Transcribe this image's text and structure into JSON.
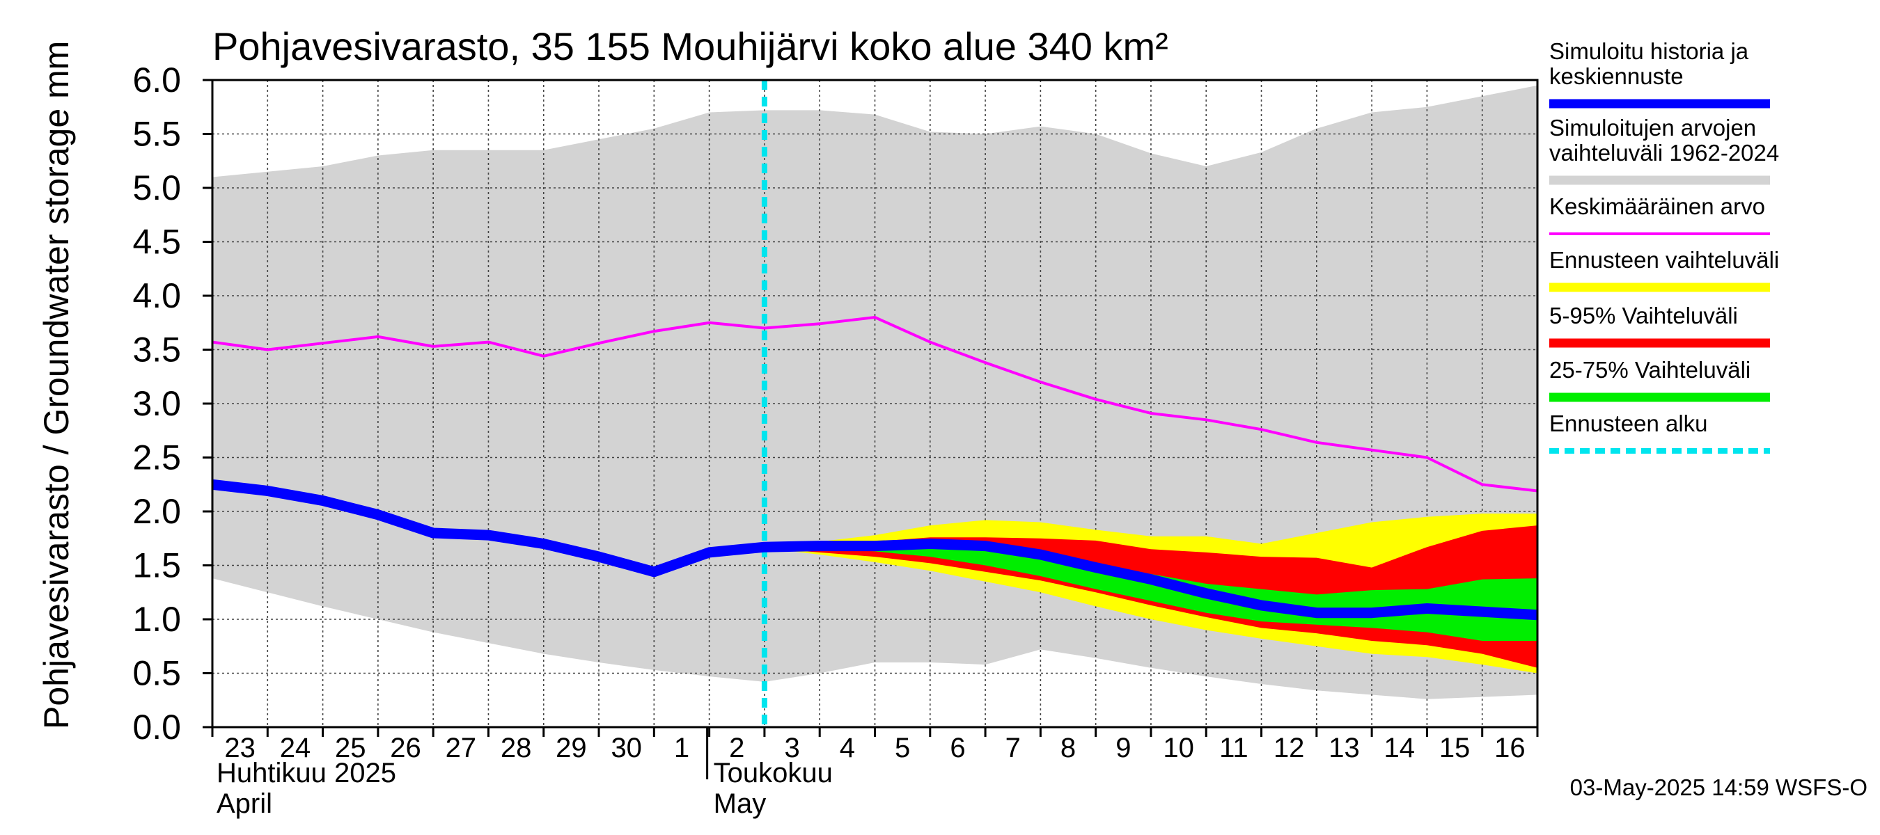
{
  "chart_data": {
    "type": "area",
    "title": "Pohjavesivarasto, 35 155 Mouhijärvi koko alue 340 km²",
    "ylabel": "Pohjavesivarasto / Groundwater storage   mm",
    "ylim": [
      0.0,
      6.0
    ],
    "yticks": [
      "0.0",
      "0.5",
      "1.0",
      "1.5",
      "2.0",
      "2.5",
      "3.0",
      "3.5",
      "4.0",
      "4.5",
      "5.0",
      "5.5",
      "6.0"
    ],
    "xlim": [
      0,
      24
    ],
    "x_tick_labels": [
      "23",
      "24",
      "25",
      "26",
      "27",
      "28",
      "29",
      "30",
      "1",
      "2",
      "3",
      "4",
      "5",
      "6",
      "7",
      "8",
      "9",
      "10",
      "11",
      "12",
      "13",
      "14",
      "15",
      "16"
    ],
    "month_labels": [
      {
        "line1": "Huhtikuu  2025",
        "line2": "April",
        "x": 0
      },
      {
        "line1": "Toukokuu",
        "line2": "May",
        "x": 9
      }
    ],
    "forecast_start_x": 10,
    "series": [
      {
        "name": "Simuloitujen arvojen vaihteluväli 1962-2024",
        "kind": "band",
        "color": "#d3d3d3",
        "x": [
          0,
          1,
          2,
          3,
          4,
          5,
          6,
          7,
          8,
          9,
          10,
          11,
          12,
          13,
          14,
          15,
          16,
          17,
          18,
          19,
          20,
          21,
          22,
          23,
          24
        ],
        "upper": [
          5.1,
          5.15,
          5.2,
          5.3,
          5.35,
          5.35,
          5.35,
          5.45,
          5.55,
          5.7,
          5.72,
          5.72,
          5.68,
          5.52,
          5.5,
          5.57,
          5.5,
          5.32,
          5.2,
          5.33,
          5.55,
          5.7,
          5.75,
          5.85,
          5.95
        ],
        "lower": [
          1.38,
          1.25,
          1.12,
          1.0,
          0.88,
          0.78,
          0.68,
          0.6,
          0.53,
          0.47,
          0.42,
          0.5,
          0.6,
          0.6,
          0.58,
          0.72,
          0.64,
          0.55,
          0.47,
          0.4,
          0.34,
          0.3,
          0.26,
          0.28,
          0.3
        ]
      },
      {
        "name": "Ennusteen vaihteluväli",
        "kind": "band",
        "color": "#ffff00",
        "x": [
          10,
          11,
          12,
          13,
          14,
          15,
          16,
          17,
          18,
          19,
          20,
          21,
          22,
          23,
          24
        ],
        "upper": [
          1.68,
          1.72,
          1.78,
          1.87,
          1.92,
          1.9,
          1.83,
          1.77,
          1.77,
          1.7,
          1.8,
          1.9,
          1.95,
          1.98,
          1.98
        ],
        "lower": [
          1.66,
          1.6,
          1.53,
          1.45,
          1.35,
          1.25,
          1.12,
          1.0,
          0.9,
          0.82,
          0.75,
          0.68,
          0.65,
          0.58,
          0.5
        ]
      },
      {
        "name": "5-95% Vaihteluväli",
        "kind": "band",
        "color": "#ff0000",
        "x": [
          10,
          11,
          12,
          13,
          14,
          15,
          16,
          17,
          18,
          19,
          20,
          21,
          22,
          23,
          24
        ],
        "upper": [
          1.68,
          1.7,
          1.72,
          1.76,
          1.76,
          1.75,
          1.73,
          1.65,
          1.62,
          1.58,
          1.57,
          1.48,
          1.67,
          1.82,
          1.87
        ],
        "lower": [
          1.66,
          1.62,
          1.58,
          1.52,
          1.44,
          1.36,
          1.25,
          1.13,
          1.02,
          0.92,
          0.87,
          0.8,
          0.76,
          0.68,
          0.55
        ]
      },
      {
        "name": "25-75% Vaihteluväli",
        "kind": "band",
        "color": "#00ee00",
        "x": [
          10,
          11,
          12,
          13,
          14,
          15,
          16,
          17,
          18,
          19,
          20,
          21,
          22,
          23,
          24
        ],
        "upper": [
          1.67,
          1.69,
          1.7,
          1.71,
          1.66,
          1.58,
          1.49,
          1.42,
          1.33,
          1.28,
          1.23,
          1.27,
          1.28,
          1.37,
          1.38
        ],
        "lower": [
          1.67,
          1.66,
          1.63,
          1.58,
          1.5,
          1.4,
          1.28,
          1.17,
          1.06,
          0.98,
          0.95,
          0.92,
          0.88,
          0.8,
          0.8
        ]
      },
      {
        "name": "Keskimääräinen arvo",
        "kind": "line",
        "color": "#ff00ff",
        "x": [
          0,
          1,
          2,
          3,
          4,
          5,
          6,
          7,
          8,
          9,
          10,
          11,
          12,
          13,
          14,
          15,
          16,
          17,
          18,
          19,
          20,
          21,
          22,
          23,
          24
        ],
        "values": [
          3.57,
          3.5,
          3.56,
          3.62,
          3.53,
          3.57,
          3.44,
          3.56,
          3.67,
          3.75,
          3.7,
          3.74,
          3.8,
          3.57,
          3.38,
          3.2,
          3.04,
          2.91,
          2.85,
          2.76,
          2.64,
          2.57,
          2.5,
          2.25,
          2.19
        ]
      },
      {
        "name": "Simuloitu historia ja keskiennuste",
        "kind": "line",
        "color": "#0000ff",
        "x": [
          0,
          1,
          2,
          3,
          4,
          5,
          6,
          7,
          8,
          9,
          10,
          11,
          12,
          13,
          14,
          15,
          16,
          17,
          18,
          19,
          20,
          21,
          22,
          23,
          24
        ],
        "values": [
          2.25,
          2.19,
          2.1,
          1.97,
          1.8,
          1.78,
          1.7,
          1.58,
          1.44,
          1.62,
          1.67,
          1.68,
          1.68,
          1.7,
          1.68,
          1.6,
          1.48,
          1.37,
          1.24,
          1.13,
          1.06,
          1.06,
          1.1,
          1.07,
          1.04
        ]
      },
      {
        "name": "Ennusteen alku",
        "kind": "vline",
        "color": "#00e5ee",
        "x": 10
      }
    ]
  },
  "legend": [
    {
      "lines": [
        "Simuloitu historia ja",
        "keskiennuste"
      ],
      "color": "#0000ff",
      "style": "thick"
    },
    {
      "lines": [
        "Simuloitujen arvojen",
        "vaihteluväli 1962-2024"
      ],
      "color": "#d3d3d3",
      "style": "thick"
    },
    {
      "lines": [
        "Keskimääräinen arvo"
      ],
      "color": "#ff00ff",
      "style": "thin"
    },
    {
      "lines": [
        "Ennusteen vaihteluväli"
      ],
      "color": "#ffff00",
      "style": "thick"
    },
    {
      "lines": [
        "5-95% Vaihteluväli"
      ],
      "color": "#ff0000",
      "style": "thick"
    },
    {
      "lines": [
        "25-75% Vaihteluväli"
      ],
      "color": "#00ee00",
      "style": "thick"
    },
    {
      "lines": [
        "Ennusteen alku"
      ],
      "color": "#00e5ee",
      "style": "dashed"
    }
  ],
  "timestamp": "03-May-2025 14:59 WSFS-O"
}
